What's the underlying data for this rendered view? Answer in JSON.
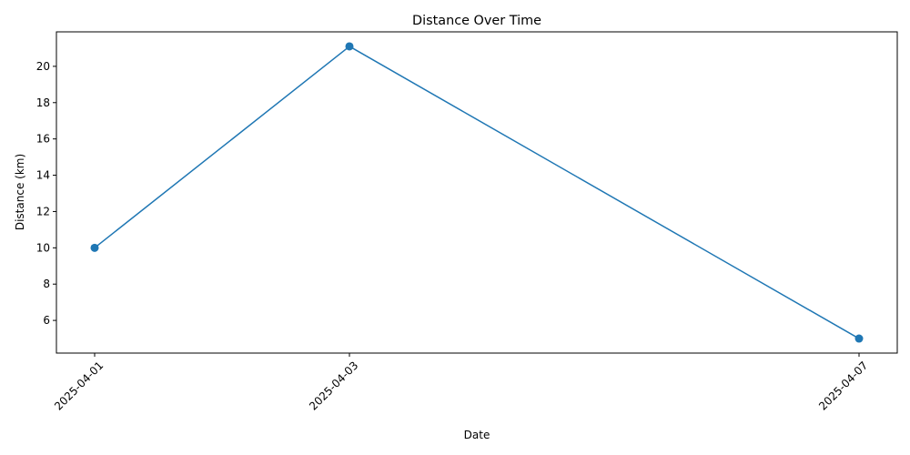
{
  "chart_data": {
    "type": "line",
    "title": "Distance Over Time",
    "xlabel": "Date",
    "ylabel": "Distance (km)",
    "x": [
      "2025-04-01",
      "2025-04-03",
      "2025-04-07"
    ],
    "y_ticks": [
      "6",
      "8",
      "10",
      "12",
      "14",
      "16",
      "18",
      "20"
    ],
    "ylim": [
      4.2,
      21.9
    ],
    "grid": false,
    "legend": "none",
    "series": [
      {
        "values": [
          10.0,
          21.1,
          5.0
        ],
        "color": "#1f77b4",
        "marker": "circle"
      }
    ]
  }
}
